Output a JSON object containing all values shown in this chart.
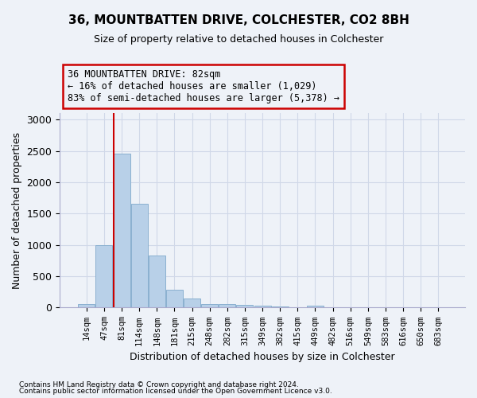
{
  "title": "36, MOUNTBATTEN DRIVE, COLCHESTER, CO2 8BH",
  "subtitle": "Size of property relative to detached houses in Colchester",
  "xlabel": "Distribution of detached houses by size in Colchester",
  "ylabel": "Number of detached properties",
  "footnote1": "Contains HM Land Registry data © Crown copyright and database right 2024.",
  "footnote2": "Contains public sector information licensed under the Open Government Licence v3.0.",
  "annotation_line1": "36 MOUNTBATTEN DRIVE: 82sqm",
  "annotation_line2": "← 16% of detached houses are smaller (1,029)",
  "annotation_line3": "83% of semi-detached houses are larger (5,378) →",
  "bar_color": "#b8d0e8",
  "bar_edge_color": "#8ab0d0",
  "grid_color": "#d0d8e8",
  "background_color": "#eef2f8",
  "red_line_color": "#cc0000",
  "annotation_box_color": "#cc0000",
  "categories": [
    "14sqm",
    "47sqm",
    "81sqm",
    "114sqm",
    "148sqm",
    "181sqm",
    "215sqm",
    "248sqm",
    "282sqm",
    "315sqm",
    "349sqm",
    "382sqm",
    "415sqm",
    "449sqm",
    "482sqm",
    "516sqm",
    "549sqm",
    "583sqm",
    "616sqm",
    "650sqm",
    "683sqm"
  ],
  "values": [
    55,
    1000,
    2460,
    1650,
    830,
    290,
    140,
    55,
    55,
    40,
    25,
    20,
    0,
    28,
    0,
    0,
    0,
    0,
    0,
    0,
    0
  ],
  "red_line_bin_index": 2,
  "ylim": [
    0,
    3100
  ],
  "yticks": [
    0,
    500,
    1000,
    1500,
    2000,
    2500,
    3000
  ]
}
